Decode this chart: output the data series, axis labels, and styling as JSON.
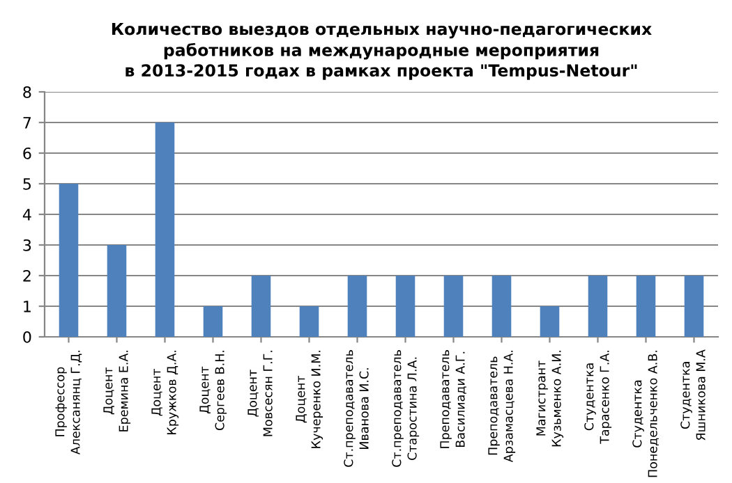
{
  "chart_data": {
    "type": "bar",
    "title": "Количество выездов отдельных научно-педагогических\nработников на международные мероприятия\nв 2013-2015 годах в рамках проекта \"Tempus-Netour\"",
    "categories": [
      "Профессор\nАлексанянц Г.Д.",
      "Доцент\nЕремина Е.А.",
      "Доцент\nКружков Д.А.",
      "Доцент\nСергеев В.Н.",
      "Доцент\nМовсесян Г.Г.",
      "Доцент\nКучеренко И.М.",
      "Ст.преподаватель\nИванова И.С.",
      "Ст.преподаватель\nСтаростина Л.А.",
      "Преподаватель\nВасилиади А.Г.",
      "Преподаватель\nАрзамасцева Н.А.",
      "Магистрант\nКузьменко А.И.",
      "Студентка\nТарасенко Г.А.",
      "Студентка\nПонедельченко А.В.",
      "Студентка\nЯшникова М.А"
    ],
    "values": [
      5,
      3,
      7,
      1,
      2,
      1,
      2,
      2,
      2,
      2,
      1,
      2,
      2,
      2
    ],
    "color": "#4f81bd",
    "ylim": [
      0,
      8
    ],
    "yticks": [
      0,
      1,
      2,
      3,
      4,
      5,
      6,
      7,
      8
    ],
    "grid": "y"
  }
}
